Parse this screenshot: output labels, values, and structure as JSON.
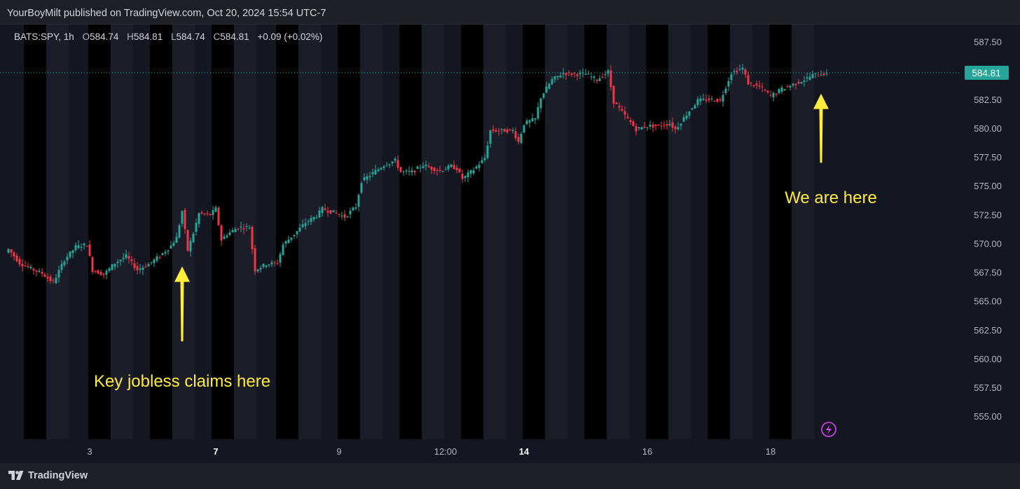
{
  "header": {
    "published_text": "YourBoyMilt published on TradingView.com, Oct 20, 2024 15:54 UTC-7"
  },
  "legend": {
    "symbol": "BATS:SPY, 1h",
    "open_label": "O",
    "open_value": "584.74",
    "high_label": "H",
    "high_value": "584.81",
    "low_label": "L",
    "low_value": "584.74",
    "close_label": "C",
    "close_value": "584.81",
    "change": "+0.09 (+0.02%)"
  },
  "price_tag": "584.81",
  "footer": {
    "brand": "TradingView"
  },
  "colors": {
    "up": "#26a69a",
    "down": "#f23645",
    "annotation": "#ffeb3b",
    "price_line": "#26a69a",
    "background": "#141722",
    "closed_session": "#000000"
  },
  "icons": {
    "lightning": "lightning-icon",
    "logo": "tradingview-logo-icon"
  },
  "chart_data": {
    "type": "candlestick",
    "title": "BATS:SPY, 1h",
    "ylim": [
      553.0,
      589.0
    ],
    "y_ticks": [
      "587.50",
      "585.00",
      "582.50",
      "580.00",
      "577.50",
      "575.00",
      "572.50",
      "570.00",
      "567.50",
      "565.00",
      "562.50",
      "560.00",
      "557.50",
      "555.00"
    ],
    "y_tick_values": [
      587.5,
      585.0,
      582.5,
      580.0,
      577.5,
      575.0,
      572.5,
      570.0,
      567.5,
      565.0,
      562.5,
      560.0,
      557.5,
      555.0
    ],
    "x_ticks": [
      {
        "label": "3",
        "index": 29,
        "bold": false
      },
      {
        "label": "7",
        "index": 74,
        "bold": true
      },
      {
        "label": "9",
        "index": 118,
        "bold": false
      },
      {
        "label": "12:00",
        "index": 156,
        "bold": false
      },
      {
        "label": "14",
        "index": 184,
        "bold": true
      },
      {
        "label": "16",
        "index": 228,
        "bold": false
      },
      {
        "label": "18",
        "index": 272,
        "bold": false
      }
    ],
    "current_price": 584.81,
    "annotations": [
      {
        "text": "Key jobless claims here",
        "x_index": 62,
        "arrow_tip": 568.0,
        "arrow_tail": 561.5
      },
      {
        "text": "We are here",
        "x_index": 290,
        "arrow_tip": 583.0,
        "arrow_tail": 577.0
      }
    ],
    "closed_sessions": [
      [
        6,
        14
      ],
      [
        29,
        37
      ],
      [
        51,
        59
      ],
      [
        73,
        81
      ],
      [
        96,
        104
      ],
      [
        118,
        126
      ],
      [
        140,
        148
      ],
      [
        162,
        170
      ],
      [
        184,
        192
      ],
      [
        206,
        214
      ],
      [
        228,
        236
      ],
      [
        250,
        258
      ],
      [
        272,
        280
      ]
    ],
    "path": [
      [
        0,
        569.5
      ],
      [
        4,
        568.3
      ],
      [
        8,
        567.8
      ],
      [
        12,
        567.4
      ],
      [
        16,
        566.6
      ],
      [
        20,
        568.6
      ],
      [
        24,
        569.7
      ],
      [
        28,
        569.9
      ],
      [
        30,
        567.7
      ],
      [
        34,
        567.3
      ],
      [
        38,
        568.3
      ],
      [
        42,
        568.9
      ],
      [
        46,
        567.7
      ],
      [
        50,
        568.2
      ],
      [
        54,
        568.9
      ],
      [
        58,
        569.8
      ],
      [
        60,
        570.5
      ],
      [
        62,
        572.8
      ],
      [
        64,
        569.4
      ],
      [
        66,
        570.9
      ],
      [
        68,
        572.6
      ],
      [
        72,
        572.5
      ],
      [
        74,
        573.0
      ],
      [
        76,
        570.3
      ],
      [
        78,
        570.8
      ],
      [
        82,
        571.4
      ],
      [
        86,
        571.4
      ],
      [
        88,
        567.7
      ],
      [
        92,
        568.2
      ],
      [
        96,
        568.3
      ],
      [
        98,
        569.9
      ],
      [
        102,
        570.8
      ],
      [
        106,
        571.8
      ],
      [
        110,
        572.4
      ],
      [
        112,
        573.0
      ],
      [
        116,
        572.7
      ],
      [
        120,
        572.3
      ],
      [
        124,
        573.2
      ],
      [
        126,
        575.4
      ],
      [
        130,
        576.1
      ],
      [
        134,
        576.8
      ],
      [
        138,
        577.2
      ],
      [
        140,
        576.2
      ],
      [
        144,
        576.2
      ],
      [
        148,
        576.8
      ],
      [
        150,
        576.6
      ],
      [
        154,
        576.3
      ],
      [
        158,
        576.7
      ],
      [
        160,
        576.5
      ],
      [
        162,
        575.6
      ],
      [
        166,
        576.4
      ],
      [
        170,
        577.4
      ],
      [
        172,
        579.8
      ],
      [
        176,
        579.8
      ],
      [
        180,
        579.8
      ],
      [
        182,
        578.8
      ],
      [
        184,
        580.4
      ],
      [
        188,
        580.8
      ],
      [
        190,
        582.7
      ],
      [
        194,
        584.2
      ],
      [
        198,
        584.8
      ],
      [
        202,
        584.7
      ],
      [
        206,
        584.7
      ],
      [
        210,
        584.2
      ],
      [
        214,
        584.9
      ],
      [
        216,
        582.3
      ],
      [
        220,
        581.1
      ],
      [
        224,
        579.9
      ],
      [
        228,
        580.2
      ],
      [
        232,
        580.2
      ],
      [
        236,
        580.4
      ],
      [
        238,
        579.9
      ],
      [
        242,
        581.2
      ],
      [
        246,
        582.4
      ],
      [
        250,
        582.5
      ],
      [
        254,
        582.4
      ],
      [
        256,
        583.6
      ],
      [
        258,
        584.8
      ],
      [
        262,
        585.2
      ],
      [
        264,
        583.9
      ],
      [
        268,
        583.6
      ],
      [
        272,
        582.8
      ],
      [
        276,
        583.4
      ],
      [
        280,
        583.8
      ],
      [
        284,
        584.2
      ],
      [
        287,
        584.6
      ],
      [
        291,
        584.74
      ],
      [
        292,
        584.81
      ]
    ]
  }
}
